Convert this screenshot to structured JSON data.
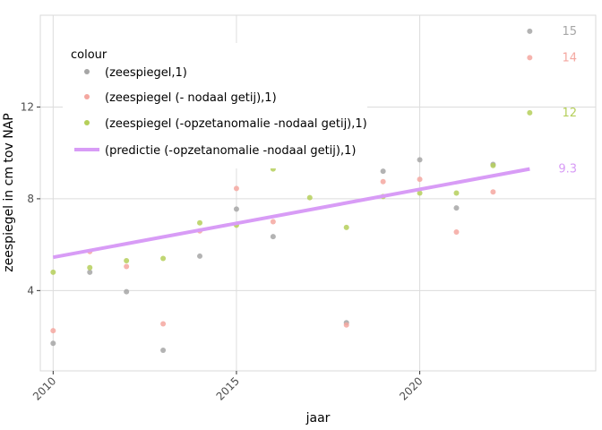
{
  "chart_data": {
    "type": "scatter",
    "xlabel": "jaar",
    "ylabel": "zeespiegel in cm tov NAP",
    "xlim": [
      2009.65,
      2024.8
    ],
    "ylim": [
      0.5,
      16
    ],
    "x_ticks": [
      2010,
      2015,
      2020
    ],
    "y_ticks": [
      4,
      8,
      12
    ],
    "grid": true,
    "legend": {
      "title": "colour",
      "placement": "top-left"
    },
    "series": [
      {
        "name": "(zeespiegel,1)",
        "kind": "points",
        "color": "#a6a6a6",
        "end_label": "15",
        "points": [
          [
            2010,
            1.7
          ],
          [
            2011,
            4.8
          ],
          [
            2012,
            3.95
          ],
          [
            2013,
            1.4
          ],
          [
            2014,
            5.5
          ],
          [
            2015,
            7.55
          ],
          [
            2016,
            6.35
          ],
          [
            2017,
            9.45
          ],
          [
            2018,
            2.6
          ],
          [
            2019,
            9.2
          ],
          [
            2020,
            9.7
          ],
          [
            2021,
            7.6
          ],
          [
            2022,
            9.5
          ],
          [
            2023,
            15.3
          ]
        ]
      },
      {
        "name": "(zeespiegel (- nodaal getij),1)",
        "kind": "points",
        "color": "#f4a7a0",
        "end_label": "14",
        "points": [
          [
            2010,
            2.25
          ],
          [
            2011,
            5.7
          ],
          [
            2012,
            5.05
          ],
          [
            2013,
            2.55
          ],
          [
            2014,
            6.6
          ],
          [
            2015,
            8.45
          ],
          [
            2016,
            7.0
          ],
          [
            2017,
            9.75
          ],
          [
            2018,
            2.5
          ],
          [
            2019,
            8.75
          ],
          [
            2020,
            8.85
          ],
          [
            2021,
            6.55
          ],
          [
            2022,
            8.3
          ],
          [
            2023,
            14.15
          ]
        ]
      },
      {
        "name": "(zeespiegel (-opzetanomalie -nodaal getij),1)",
        "kind": "points",
        "color": "#b5cf5a",
        "end_label": "12",
        "points": [
          [
            2010,
            4.8
          ],
          [
            2011,
            5.0
          ],
          [
            2012,
            5.3
          ],
          [
            2013,
            5.4
          ],
          [
            2014,
            6.95
          ],
          [
            2015,
            6.85
          ],
          [
            2016,
            9.3
          ],
          [
            2017,
            8.05
          ],
          [
            2018,
            6.75
          ],
          [
            2019,
            8.1
          ],
          [
            2020,
            8.25
          ],
          [
            2021,
            8.25
          ],
          [
            2022,
            9.45
          ],
          [
            2023,
            11.75
          ]
        ]
      },
      {
        "name": "(predictie (-opzetanomalie -nodaal getij),1)",
        "kind": "line",
        "color": "#d89cf6",
        "end_label": "9.3",
        "points": [
          [
            2010,
            5.45
          ],
          [
            2023,
            9.3
          ]
        ]
      }
    ]
  }
}
